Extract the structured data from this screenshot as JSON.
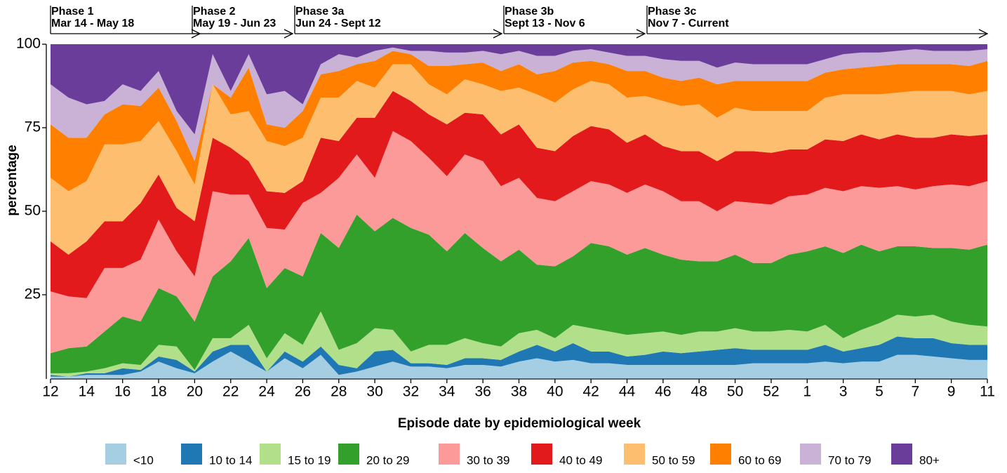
{
  "chart_data": {
    "type": "stacked-area",
    "y_label": "percentage",
    "x_label": "Episode date by epidemiological week",
    "annotations": [
      {
        "title": "Phase 1",
        "dates": "Mar 14 - May 18"
      },
      {
        "title": "Phase 2",
        "dates": "May 19 - Jun 23"
      },
      {
        "title": "Phase 3a",
        "dates": "Jun 24 - Sept 12"
      },
      {
        "title": "Phase 3b",
        "dates": "Sept 13 - Nov 6"
      },
      {
        "title": "Phase 3c",
        "dates": "Nov 7 - Current"
      }
    ],
    "categories": [
      "12",
      null,
      "14",
      null,
      "16",
      null,
      "18",
      null,
      "20",
      null,
      "22",
      null,
      "24",
      null,
      "26",
      null,
      "28",
      null,
      "30",
      null,
      "32",
      null,
      "34",
      null,
      "36",
      null,
      "38",
      null,
      "40",
      null,
      "42",
      null,
      "44",
      null,
      "46",
      null,
      "48",
      null,
      "50",
      null,
      "52",
      null,
      "1",
      null,
      "3",
      null,
      "5",
      null,
      "7",
      null,
      "9",
      null,
      "11"
    ],
    "ylim": [
      0,
      100
    ],
    "yticks": [
      25,
      50,
      75,
      100
    ],
    "grid": false,
    "legend": "bottom",
    "series": [
      {
        "name": "<10",
        "color": "#a6cee3",
        "values": [
          0.5,
          0.5,
          1,
          1,
          1,
          2,
          5,
          3,
          1.5,
          5,
          8,
          5,
          2,
          6,
          3,
          7,
          1,
          2,
          3.5,
          5,
          3.5,
          3.5,
          3,
          4,
          4,
          3.5,
          5,
          6,
          5,
          5.5,
          4.5,
          4.5,
          4,
          4,
          4,
          4,
          4,
          4,
          4,
          4.5,
          4.5,
          4.5,
          4.5,
          5,
          4.5,
          5,
          5,
          7,
          7,
          6.5,
          6,
          5.5,
          5.5
        ]
      },
      {
        "name": "10 to 14",
        "color": "#1f78b4",
        "values": [
          0.5,
          0,
          0.5,
          0.5,
          2,
          0.5,
          1.5,
          2.5,
          0.5,
          3,
          2,
          5,
          0,
          2,
          2,
          2.5,
          3,
          1,
          4.5,
          3.5,
          1,
          1,
          1,
          2,
          2,
          2,
          3,
          4,
          3,
          5,
          3.5,
          3.5,
          2.5,
          3,
          4,
          3.5,
          4,
          4.5,
          5,
          4,
          4,
          4,
          4,
          5,
          3.5,
          4,
          5,
          5.5,
          5,
          5.5,
          4.5,
          4.5,
          4.5
        ]
      },
      {
        "name": "15 to 19",
        "color": "#b2df8a",
        "values": [
          0.5,
          1,
          0.5,
          1.5,
          1.5,
          1.5,
          3.5,
          4,
          0.5,
          4,
          2,
          6,
          4,
          5.5,
          5,
          10.5,
          4.5,
          7.5,
          7,
          6,
          3.5,
          5.5,
          6,
          6,
          4.5,
          4,
          5.5,
          4.5,
          4,
          5.5,
          7,
          6,
          6.5,
          6.5,
          6,
          5.5,
          6,
          5.5,
          6,
          5.5,
          5.5,
          6,
          5.5,
          6,
          4,
          5.5,
          6.5,
          6.5,
          6.5,
          7,
          6.5,
          6,
          5.5
        ]
      },
      {
        "name": "20 to 29",
        "color": "#33a02c",
        "values": [
          6,
          7.5,
          7.5,
          11,
          14,
          13,
          17,
          15,
          14.5,
          18.5,
          23,
          26,
          21,
          19.5,
          20.5,
          23.5,
          30.5,
          38.5,
          29,
          33.5,
          37,
          33,
          28,
          31.5,
          28.5,
          25.5,
          25,
          19.5,
          21.5,
          20.5,
          25.5,
          25.5,
          24,
          25.5,
          23,
          22.5,
          21,
          21,
          22,
          20.5,
          20.5,
          22.5,
          24,
          23.5,
          25.5,
          25.5,
          21.5,
          20.5,
          21,
          20,
          22,
          22.5,
          24.5
        ]
      },
      {
        "name": "30 to 39",
        "color": "#fb9a99",
        "values": [
          18.5,
          15.5,
          14.5,
          19,
          14.5,
          18.5,
          20.5,
          13.5,
          13.5,
          25.5,
          20,
          13,
          18,
          11.5,
          22,
          12,
          21,
          18,
          16,
          26,
          26,
          23,
          22.5,
          23.5,
          26,
          22.5,
          21.5,
          20,
          19.5,
          19.5,
          18.5,
          18.5,
          18.5,
          19,
          19,
          17.5,
          18,
          15,
          16,
          18,
          17.5,
          17.5,
          17,
          17.5,
          18.5,
          17.5,
          19,
          18,
          17,
          18.5,
          19,
          19,
          19
        ]
      },
      {
        "name": "40 to 49",
        "color": "#e31a1c",
        "values": [
          15,
          12.5,
          17,
          14,
          14,
          17,
          13.5,
          13,
          16.5,
          16,
          14,
          10,
          11,
          11,
          6.5,
          16.5,
          11,
          11,
          18,
          12,
          12,
          13,
          15.5,
          12.5,
          14,
          15.5,
          16,
          15,
          15,
          16.5,
          16.5,
          16.5,
          15,
          15,
          13.5,
          15,
          15,
          15,
          15,
          15.5,
          15.5,
          14,
          13.5,
          14.5,
          15,
          15.5,
          14.5,
          15.5,
          15.5,
          14.5,
          15,
          15,
          14
        ]
      },
      {
        "name": "50 to 59",
        "color": "#fdbf6f",
        "values": [
          19,
          19,
          18,
          23,
          23,
          18.5,
          16,
          17,
          11,
          16,
          10,
          15,
          15,
          14,
          13,
          12,
          13,
          11,
          9,
          8,
          11,
          9,
          9,
          10,
          9,
          13,
          11,
          16,
          14.5,
          14,
          13.5,
          13.5,
          13.5,
          11.5,
          13.5,
          13.5,
          14,
          13,
          13,
          12,
          12.5,
          11.5,
          11.5,
          12.5,
          14,
          12,
          13.5,
          12.5,
          14,
          14,
          13,
          12.5,
          13
        ]
      },
      {
        "name": "60 to 69",
        "color": "#ff7f00",
        "values": [
          16,
          16,
          13,
          9,
          12,
          10.5,
          10,
          9,
          7,
          0,
          5,
          13,
          5,
          5.5,
          8,
          7,
          8,
          5,
          8,
          4,
          3,
          5.5,
          8.5,
          4.5,
          6.5,
          6,
          7,
          6,
          9.5,
          8,
          6,
          6,
          8,
          7.5,
          7,
          7.5,
          8,
          10,
          8,
          9,
          9,
          9,
          9,
          7.5,
          7.5,
          8,
          8.5,
          8.5,
          8,
          8,
          8,
          8.5,
          9
        ]
      },
      {
        "name": "70 to 79",
        "color": "#cab2d6",
        "values": [
          12,
          12,
          10,
          4,
          6,
          4.5,
          5,
          3,
          8,
          9,
          2,
          4,
          9,
          11,
          2,
          3,
          5,
          2,
          3,
          1,
          1,
          4.5,
          4,
          3.5,
          3.5,
          5,
          4,
          5.5,
          4.5,
          3.5,
          3.5,
          3.5,
          4.5,
          4.5,
          5.5,
          6,
          5,
          5,
          5.5,
          5,
          5,
          5,
          5,
          4,
          4.5,
          4.5,
          4,
          4,
          4.5,
          4,
          4,
          4.5,
          3.5
        ]
      },
      {
        "name": "80+",
        "color": "#6a3d9a",
        "values": [
          12,
          16,
          18,
          17,
          12,
          14,
          8,
          20,
          27,
          3,
          14,
          3,
          15,
          14,
          18,
          6,
          3,
          4,
          2,
          1,
          2,
          2,
          2.5,
          2.5,
          2,
          3,
          2,
          3.5,
          3.5,
          2,
          1.5,
          2.5,
          3.5,
          3.5,
          4.5,
          5,
          5,
          7,
          5.5,
          6,
          6,
          6,
          6,
          4.5,
          3,
          2.5,
          2.5,
          2,
          1.5,
          2,
          2,
          2,
          1.5
        ]
      }
    ]
  }
}
